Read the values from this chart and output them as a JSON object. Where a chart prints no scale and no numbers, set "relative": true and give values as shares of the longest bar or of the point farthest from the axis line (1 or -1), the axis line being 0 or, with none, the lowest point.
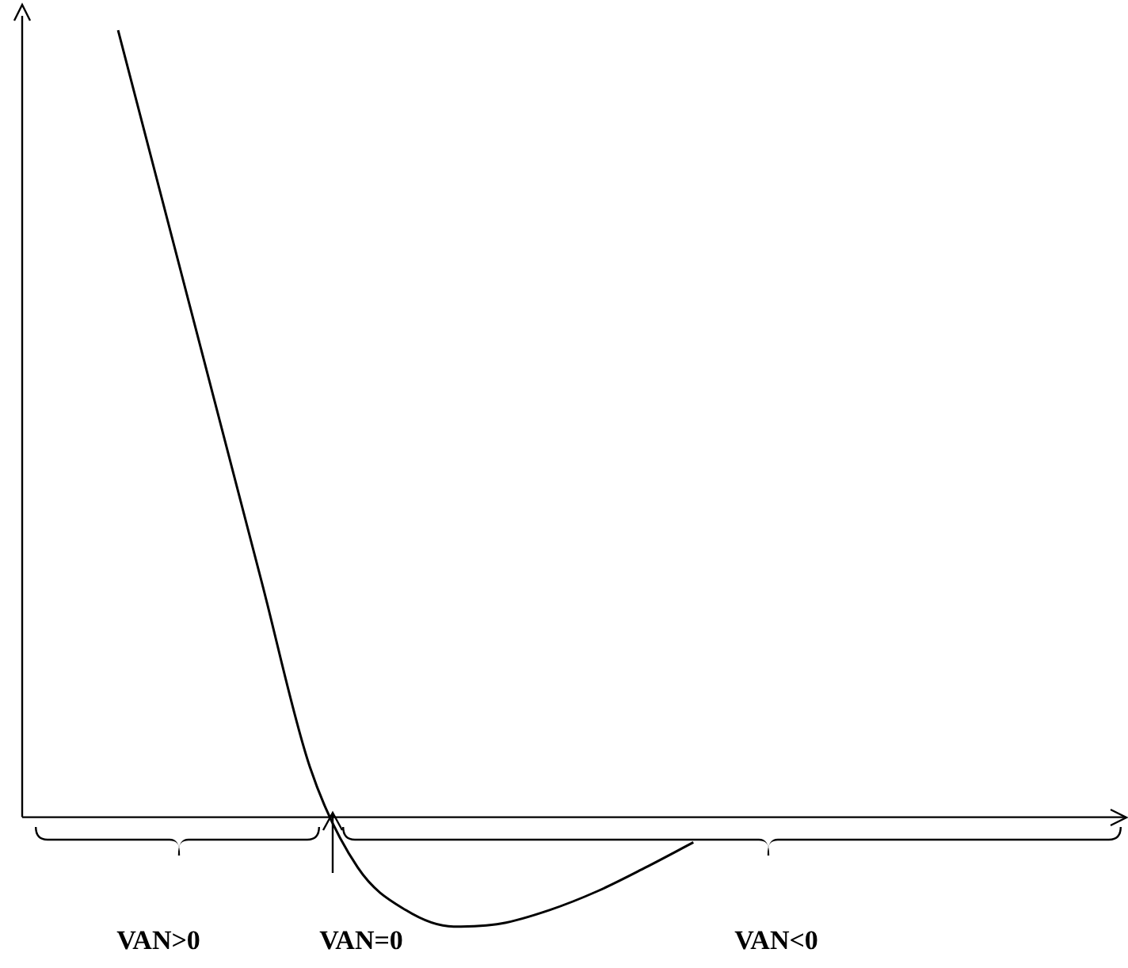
{
  "chart_data": {
    "type": "line",
    "relative": true,
    "color": "#000000",
    "marker": "none",
    "legend": false,
    "tick_labels": false,
    "categories": [
      null,
      null,
      null,
      null,
      null,
      null,
      null,
      null,
      null,
      null,
      null,
      null,
      null,
      null,
      null,
      null,
      null,
      null,
      null,
      null,
      null,
      null,
      null,
      null
    ],
    "values": [
      null,
      null,
      1.0,
      0.766,
      0.532,
      0.298,
      0.064,
      -0.064,
      -0.118,
      -0.139,
      -0.135,
      -0.118,
      -0.094,
      -0.064,
      -0.032,
      null,
      null,
      null,
      null,
      null,
      null,
      null,
      null,
      null
    ],
    "annotations": [
      "VAN>0",
      "VAN=0",
      "VAN<0"
    ]
  }
}
